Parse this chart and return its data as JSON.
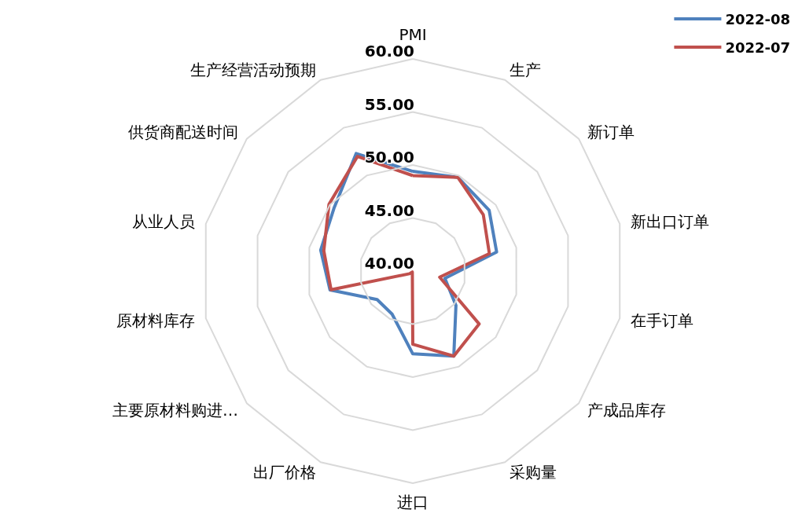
{
  "chart_data": {
    "type": "radar",
    "categories": [
      "PMI",
      "生产",
      "新订单",
      "新出口订单",
      "在手订单",
      "产成品库存",
      "采购量",
      "进口",
      "出厂价格",
      "主要原材料购进…",
      "原材料库存",
      "从业人员",
      "供货商配送时间",
      "生产经营活动预期"
    ],
    "series": [
      {
        "name": "2022-08",
        "color": "#4f81bd",
        "values": [
          49.4,
          49.8,
          49.2,
          48.1,
          43.1,
          45.2,
          48.9,
          47.8,
          44.5,
          44.3,
          48.0,
          48.9,
          49.5,
          52.3
        ]
      },
      {
        "name": "2022-07",
        "color": "#c0504d",
        "values": [
          49.0,
          49.8,
          48.5,
          47.4,
          42.6,
          48.0,
          48.9,
          46.9,
          40.1,
          40.4,
          47.9,
          48.6,
          50.1,
          52.0
        ]
      }
    ],
    "ylim": [
      40,
      60
    ],
    "yticks": [
      {
        "value": 40,
        "label": "40.00"
      },
      {
        "value": 45,
        "label": "45.00"
      },
      {
        "value": 50,
        "label": "50.00"
      },
      {
        "value": 55,
        "label": "55.00"
      },
      {
        "value": 60,
        "label": "60.00"
      }
    ],
    "legend": "top right",
    "marker": "none",
    "line_style": "solid"
  }
}
